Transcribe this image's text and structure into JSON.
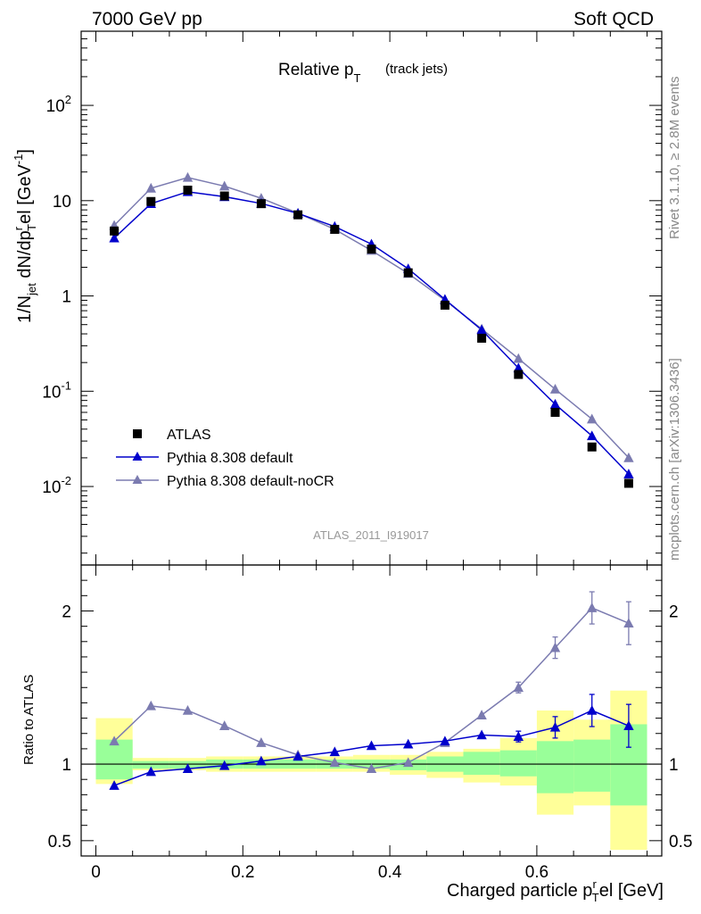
{
  "header": {
    "left": "7000 GeV pp",
    "right": "Soft QCD"
  },
  "side_labels": {
    "rivet": "Rivet 3.1.10, ≥ 2.8M events",
    "mcplots": "mcplots.cern.ch [arXiv:1306.3436]"
  },
  "chart_data": {
    "type": "scatter",
    "title": {
      "main": "Relative p",
      "sub": "T",
      "suffix": "(track jets)"
    },
    "analysis_id": "ATLAS_2011_I919017",
    "xlabel": "Charged particle p",
    "xlabel_sub": "T",
    "xlabel_sup": "r",
    "xlabel_suffix": "el [GeV]",
    "ylabel": "1/N",
    "ylabel_parts": {
      "jet": "jet",
      "dN": " dN/dp",
      "T": "T",
      "r": "r",
      "el": "el [GeV",
      "exp": "-1",
      "close": "]"
    },
    "ratio_ylabel": "Ratio to ATLAS",
    "xlim": [
      -0.02,
      0.77
    ],
    "ylim": [
      0.0015,
      600
    ],
    "yscale": "log",
    "ratio_ylim": [
      0.4,
      2.3
    ],
    "x_ticks": [
      "0",
      "0.2",
      "0.4",
      "0.6"
    ],
    "x_tick_values": [
      0,
      0.2,
      0.4,
      0.6
    ],
    "y_ticks": [
      "10^-2",
      "10^-1",
      "1",
      "10",
      "10^2"
    ],
    "ratio_ticks": [
      "0.5",
      "1",
      "2"
    ],
    "ratio_tick_values": [
      0.5,
      1,
      2
    ],
    "x": [
      0.025,
      0.075,
      0.125,
      0.175,
      0.225,
      0.275,
      0.325,
      0.375,
      0.425,
      0.475,
      0.525,
      0.575,
      0.625,
      0.675,
      0.725
    ],
    "series": [
      {
        "name": "ATLAS",
        "color": "#000000",
        "marker": "square",
        "values": [
          4.8,
          9.8,
          12.9,
          11.2,
          9.3,
          7.1,
          5.0,
          3.1,
          1.75,
          0.8,
          0.36,
          0.15,
          0.06,
          0.026,
          0.0108
        ]
      },
      {
        "name": "Pythia 8.308 default",
        "color": "#0000cc",
        "marker": "triangle",
        "values": [
          4.05,
          9.3,
          12.4,
          11.0,
          9.35,
          7.35,
          5.35,
          3.5,
          1.93,
          0.92,
          0.44,
          0.175,
          0.073,
          0.034,
          0.0135
        ]
      },
      {
        "name": "Pythia 8.308 default-noCR",
        "color": "#7b7bb0",
        "marker": "triangle",
        "values": [
          5.5,
          13.5,
          17.5,
          14.2,
          10.6,
          7.4,
          5.0,
          3.0,
          1.72,
          0.9,
          0.45,
          0.22,
          0.105,
          0.051,
          0.02
        ]
      }
    ],
    "ratio_series": [
      {
        "name": "Pythia 8.308 default",
        "color": "#0000cc",
        "values": [
          0.86,
          0.95,
          0.97,
          0.99,
          1.02,
          1.05,
          1.08,
          1.12,
          1.13,
          1.15,
          1.19,
          1.18,
          1.24,
          1.35,
          1.25
        ]
      },
      {
        "name": "Pythia 8.308 default-noCR",
        "color": "#7b7bb0",
        "values": [
          1.15,
          1.38,
          1.35,
          1.25,
          1.14,
          1.06,
          1.01,
          0.97,
          1.01,
          1.14,
          1.32,
          1.5,
          1.76,
          2.02,
          1.92
        ]
      }
    ],
    "band_green": [
      [
        0.9,
        1.16
      ],
      [
        0.97,
        1.02
      ],
      [
        0.97,
        1.02
      ],
      [
        0.97,
        1.03
      ],
      [
        0.97,
        1.03
      ],
      [
        0.97,
        1.03
      ],
      [
        0.97,
        1.03
      ],
      [
        0.97,
        1.03
      ],
      [
        0.96,
        1.03
      ],
      [
        0.95,
        1.05
      ],
      [
        0.93,
        1.08
      ],
      [
        0.92,
        1.09
      ],
      [
        0.81,
        1.15
      ],
      [
        0.82,
        1.16
      ],
      [
        0.73,
        1.26
      ]
    ],
    "band_yellow": [
      [
        0.87,
        1.3
      ],
      [
        0.96,
        1.04
      ],
      [
        0.96,
        1.04
      ],
      [
        0.95,
        1.05
      ],
      [
        0.95,
        1.05
      ],
      [
        0.95,
        1.05
      ],
      [
        0.95,
        1.05
      ],
      [
        0.95,
        1.06
      ],
      [
        0.93,
        1.06
      ],
      [
        0.91,
        1.08
      ],
      [
        0.88,
        1.1
      ],
      [
        0.86,
        1.17
      ],
      [
        0.67,
        1.35
      ],
      [
        0.73,
        1.29
      ],
      [
        0.44,
        1.48
      ]
    ],
    "legend_position": "bottom-left",
    "grid": false
  }
}
